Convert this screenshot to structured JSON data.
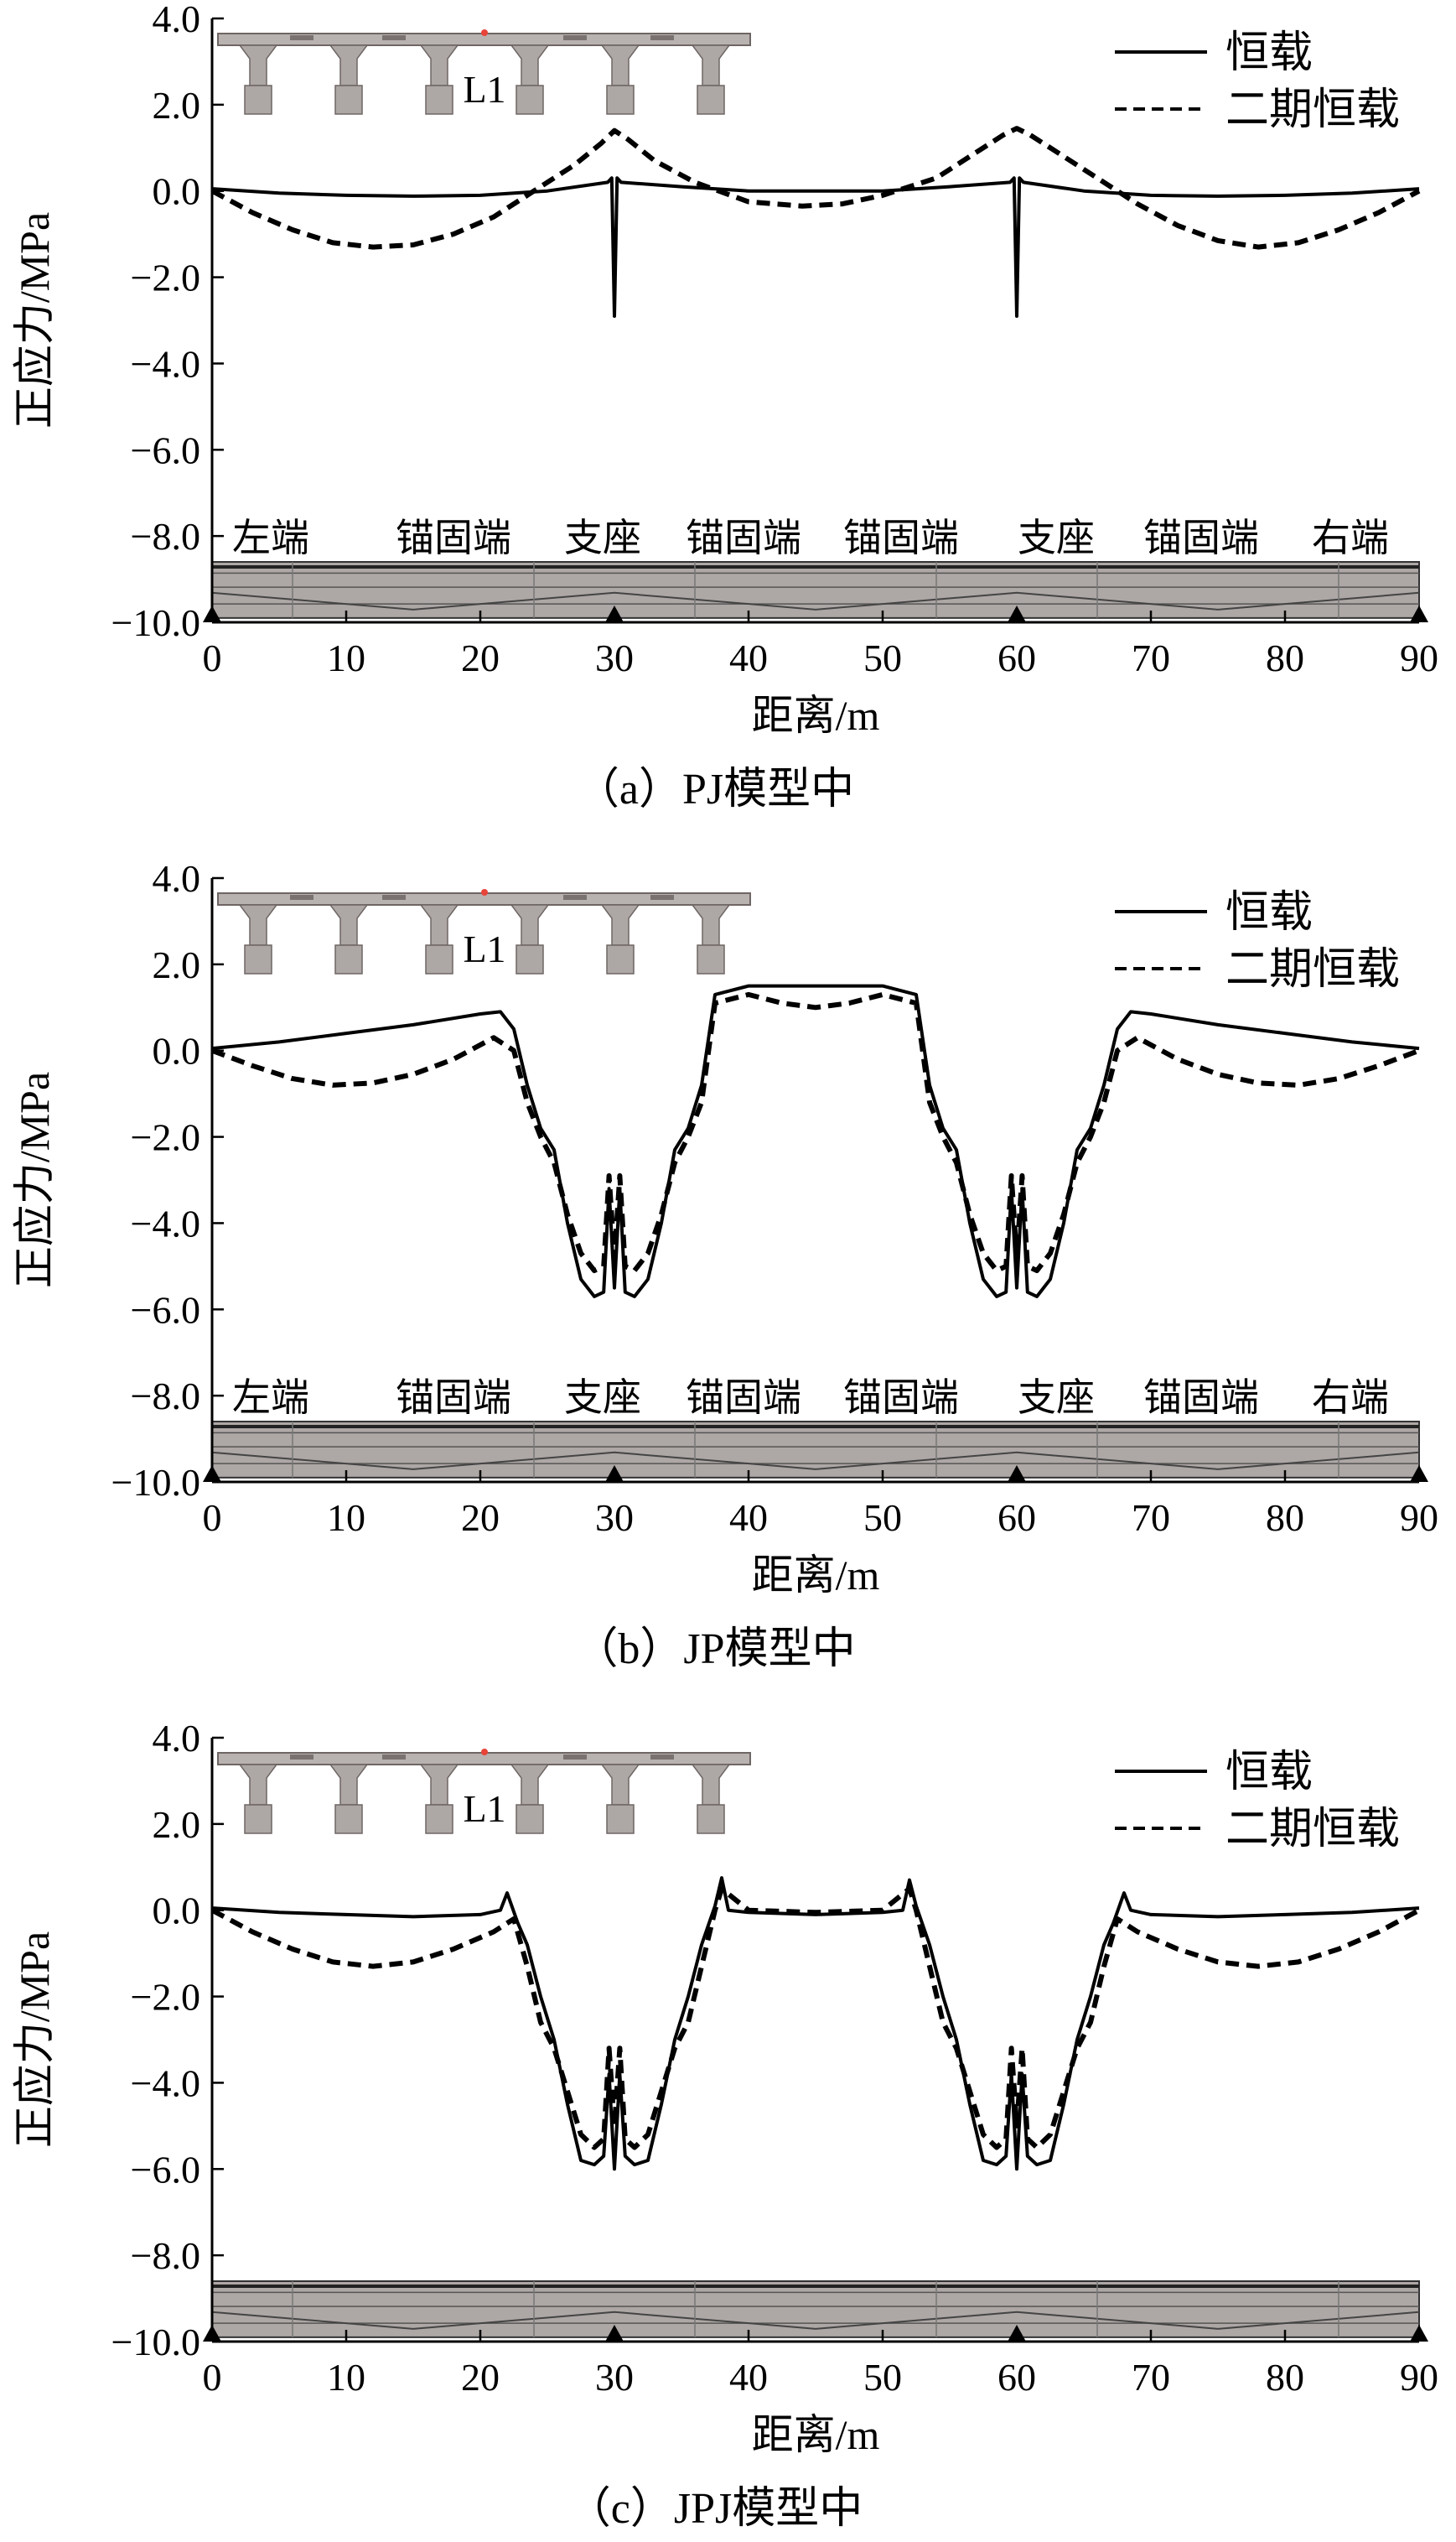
{
  "colors": {
    "line": "#000000",
    "deck": "#b8b2b0",
    "deck_edge": "#6e6664",
    "girder_fill": "#ada7a5",
    "marker": "#e8443a"
  },
  "charts": [
    {
      "caption": "（a）PJ模型中",
      "beam_label": "L1",
      "segment_labels": [
        "左端",
        "锚固端",
        "支座",
        "锚固端",
        "锚固端",
        "支座",
        "锚固端",
        "右端"
      ],
      "legend": [
        "恒载",
        "二期恒载"
      ]
    },
    {
      "caption": "（b）JP模型中",
      "beam_label": "L1",
      "segment_labels": [
        "左端",
        "锚固端",
        "支座",
        "锚固端",
        "锚固端",
        "支座",
        "锚固端",
        "右端"
      ],
      "legend": [
        "恒载",
        "二期恒载"
      ]
    },
    {
      "caption": "（c）JPJ模型中",
      "beam_label": "L1",
      "segment_labels": [],
      "legend": [
        "恒载",
        "二期恒载"
      ]
    }
  ],
  "chart_data": [
    {
      "type": "line",
      "xlabel": "距离/m",
      "ylabel": "正应力/MPa",
      "xlim": [
        0,
        90
      ],
      "ylim": [
        -10,
        4
      ],
      "xticks": [
        "0",
        "10",
        "20",
        "30",
        "40",
        "50",
        "60",
        "70",
        "80",
        "90"
      ],
      "yticks": [
        "4.0",
        "2.0",
        "0.0",
        "−2.0",
        "−4.0",
        "−6.0",
        "−8.0",
        "−10.0"
      ],
      "grid": false,
      "legend_position": "top-right",
      "series": [
        {
          "name": "恒载",
          "style": "solid",
          "x": [
            0,
            5,
            10,
            15,
            20,
            25,
            29.5,
            29.8,
            30,
            30.2,
            30.5,
            35,
            40,
            45,
            50,
            55,
            59.5,
            59.8,
            60,
            60.2,
            60.5,
            65,
            70,
            75,
            80,
            85,
            90
          ],
          "y": [
            0.05,
            -0.05,
            -0.1,
            -0.12,
            -0.1,
            0.0,
            0.2,
            0.3,
            -2.9,
            0.3,
            0.2,
            0.1,
            0.0,
            0.0,
            0.0,
            0.1,
            0.2,
            0.3,
            -2.9,
            0.3,
            0.2,
            0.0,
            -0.1,
            -0.12,
            -0.1,
            -0.05,
            0.05
          ]
        },
        {
          "name": "二期恒载",
          "style": "dashed",
          "x": [
            0,
            3,
            6,
            9,
            12,
            15,
            18,
            21,
            24,
            27,
            29,
            30,
            31,
            33,
            36,
            40,
            44,
            47,
            50,
            54,
            57,
            59,
            60,
            61,
            63,
            66,
            69,
            72,
            75,
            78,
            81,
            84,
            87,
            90
          ],
          "y": [
            0.0,
            -0.5,
            -0.9,
            -1.2,
            -1.3,
            -1.25,
            -1.0,
            -0.6,
            0.0,
            0.6,
            1.1,
            1.4,
            1.2,
            0.7,
            0.2,
            -0.25,
            -0.35,
            -0.3,
            -0.1,
            0.3,
            0.9,
            1.3,
            1.45,
            1.3,
            0.9,
            0.3,
            -0.3,
            -0.8,
            -1.15,
            -1.3,
            -1.2,
            -0.9,
            -0.5,
            0.0
          ]
        }
      ]
    },
    {
      "type": "line",
      "xlabel": "距离/m",
      "ylabel": "正应力/MPa",
      "xlim": [
        0,
        90
      ],
      "ylim": [
        -10,
        4
      ],
      "xticks": [
        "0",
        "10",
        "20",
        "30",
        "40",
        "50",
        "60",
        "70",
        "80",
        "90"
      ],
      "yticks": [
        "4.0",
        "2.0",
        "0.0",
        "−2.0",
        "−4.0",
        "−6.0",
        "−8.0",
        "−10.0"
      ],
      "grid": false,
      "legend_position": "top-right",
      "series": [
        {
          "name": "恒载",
          "style": "solid",
          "x": [
            0,
            5,
            10,
            15,
            20,
            21.5,
            22.5,
            23.5,
            24.5,
            25.5,
            26.5,
            27.5,
            28.5,
            29.2,
            29.6,
            30,
            30.4,
            30.8,
            31.5,
            32.5,
            33.5,
            34.5,
            35.5,
            36.5,
            37.5,
            40,
            45,
            50,
            52.5,
            53.5,
            54.5,
            55.5,
            56.5,
            57.5,
            58.5,
            59.2,
            59.6,
            60,
            60.4,
            60.8,
            61.5,
            62.5,
            63.5,
            64.5,
            65.5,
            66.5,
            67.5,
            68.5,
            70,
            75,
            80,
            85,
            90
          ],
          "y": [
            0.05,
            0.2,
            0.4,
            0.6,
            0.85,
            0.9,
            0.5,
            -0.8,
            -1.8,
            -2.3,
            -4.0,
            -5.3,
            -5.7,
            -5.6,
            -3.2,
            -5.5,
            -3.2,
            -5.6,
            -5.7,
            -5.3,
            -4.0,
            -2.3,
            -1.8,
            -0.8,
            1.3,
            1.5,
            1.5,
            1.5,
            1.3,
            -0.8,
            -1.8,
            -2.3,
            -4.0,
            -5.3,
            -5.7,
            -5.6,
            -3.2,
            -5.5,
            -3.2,
            -5.6,
            -5.7,
            -5.3,
            -4.0,
            -2.3,
            -1.8,
            -0.8,
            0.5,
            0.9,
            0.85,
            0.6,
            0.4,
            0.2,
            0.05
          ]
        },
        {
          "name": "二期恒载",
          "style": "dashed",
          "x": [
            0,
            3,
            6,
            9,
            12,
            15,
            18,
            21,
            22.5,
            23.5,
            24.5,
            25.5,
            26.5,
            27.5,
            28.5,
            29.2,
            29.6,
            30,
            30.4,
            30.8,
            31.5,
            32.5,
            33.5,
            34.5,
            35.5,
            36.5,
            37.5,
            40,
            42.5,
            45,
            47.5,
            50,
            52.5,
            53.5,
            54.5,
            55.5,
            56.5,
            57.5,
            58.5,
            59.2,
            59.6,
            60,
            60.4,
            60.8,
            61.5,
            62.5,
            63.5,
            64.5,
            65.5,
            66.5,
            67.5,
            69,
            72,
            75,
            78,
            81,
            84,
            87,
            90
          ],
          "y": [
            0.0,
            -0.35,
            -0.65,
            -0.8,
            -0.75,
            -0.55,
            -0.2,
            0.3,
            0.0,
            -1.2,
            -2.0,
            -2.6,
            -3.8,
            -4.7,
            -5.1,
            -5.0,
            -2.9,
            -4.8,
            -2.9,
            -5.0,
            -5.1,
            -4.7,
            -3.8,
            -2.6,
            -2.0,
            -1.2,
            1.1,
            1.3,
            1.1,
            1.0,
            1.1,
            1.3,
            1.1,
            -1.2,
            -2.0,
            -2.6,
            -3.8,
            -4.7,
            -5.1,
            -5.0,
            -2.9,
            -4.8,
            -2.9,
            -5.0,
            -5.1,
            -4.7,
            -3.8,
            -2.6,
            -2.0,
            -1.2,
            0.0,
            0.3,
            -0.2,
            -0.55,
            -0.75,
            -0.8,
            -0.65,
            -0.35,
            0.0
          ]
        }
      ]
    },
    {
      "type": "line",
      "xlabel": "距离/m",
      "ylabel": "正应力/MPa",
      "xlim": [
        0,
        90
      ],
      "ylim": [
        -10,
        4
      ],
      "xticks": [
        "0",
        "10",
        "20",
        "30",
        "40",
        "50",
        "60",
        "70",
        "80",
        "90"
      ],
      "yticks": [
        "4.0",
        "2.0",
        "0.0",
        "−2.0",
        "−4.0",
        "−6.0",
        "−8.0",
        "−10.0"
      ],
      "grid": false,
      "legend_position": "top-right",
      "series": [
        {
          "name": "恒载",
          "style": "solid",
          "x": [
            0,
            5,
            10,
            15,
            20,
            21.5,
            22,
            22.8,
            23.5,
            24.5,
            25.5,
            26.5,
            27.5,
            28.5,
            29.2,
            29.6,
            30,
            30.4,
            30.8,
            31.5,
            32.5,
            33.5,
            34.5,
            35.5,
            36.5,
            37.5,
            38,
            38.5,
            40,
            45,
            50,
            51.5,
            52,
            52.5,
            53.5,
            54.5,
            55.5,
            56.5,
            57.5,
            58.5,
            59.2,
            59.6,
            60,
            60.4,
            60.8,
            61.5,
            62.5,
            63.5,
            64.5,
            65.5,
            66.5,
            67.2,
            68,
            68.5,
            70,
            75,
            80,
            85,
            90
          ],
          "y": [
            0.05,
            -0.05,
            -0.1,
            -0.15,
            -0.1,
            0.0,
            0.4,
            -0.3,
            -0.8,
            -2.0,
            -3.0,
            -4.5,
            -5.8,
            -5.9,
            -5.7,
            -3.8,
            -6.0,
            -3.8,
            -5.7,
            -5.9,
            -5.8,
            -4.5,
            -3.0,
            -2.0,
            -0.8,
            0.1,
            0.75,
            0.0,
            -0.05,
            -0.1,
            -0.05,
            0.0,
            0.7,
            0.1,
            -0.8,
            -2.0,
            -3.0,
            -4.5,
            -5.8,
            -5.9,
            -5.7,
            -3.8,
            -6.0,
            -3.8,
            -5.7,
            -5.9,
            -5.8,
            -4.5,
            -3.0,
            -2.0,
            -0.8,
            -0.3,
            0.4,
            0.0,
            -0.1,
            -0.15,
            -0.1,
            -0.05,
            0.05
          ]
        },
        {
          "name": "二期恒载",
          "style": "dashed",
          "x": [
            0,
            3,
            6,
            9,
            12,
            15,
            18,
            21,
            22.5,
            23.5,
            24.5,
            25.5,
            26.5,
            27.5,
            28.5,
            29.2,
            29.6,
            30,
            30.4,
            30.8,
            31.5,
            32.5,
            33.5,
            34.5,
            35.5,
            36.5,
            37.5,
            38,
            40,
            45,
            50,
            52,
            52.5,
            53.5,
            54.5,
            55.5,
            56.5,
            57.5,
            58.5,
            59.2,
            59.6,
            60,
            60.4,
            60.8,
            61.5,
            62.5,
            63.5,
            64.5,
            65.5,
            66.5,
            67.5,
            69,
            72,
            75,
            78,
            81,
            84,
            87,
            90
          ],
          "y": [
            0.0,
            -0.5,
            -0.9,
            -1.2,
            -1.3,
            -1.2,
            -0.9,
            -0.5,
            -0.2,
            -1.3,
            -2.6,
            -3.2,
            -4.2,
            -5.2,
            -5.5,
            -5.3,
            -3.2,
            -5.0,
            -3.2,
            -5.3,
            -5.5,
            -5.2,
            -4.2,
            -3.2,
            -2.6,
            -1.3,
            0.0,
            0.5,
            0.0,
            -0.05,
            0.0,
            0.5,
            0.0,
            -1.3,
            -2.6,
            -3.2,
            -4.2,
            -5.2,
            -5.5,
            -5.3,
            -3.2,
            -5.0,
            -3.2,
            -5.3,
            -5.5,
            -5.2,
            -4.2,
            -3.2,
            -2.6,
            -1.3,
            -0.2,
            -0.5,
            -0.9,
            -1.2,
            -1.3,
            -1.2,
            -0.9,
            -0.5,
            0.0
          ]
        }
      ]
    }
  ]
}
